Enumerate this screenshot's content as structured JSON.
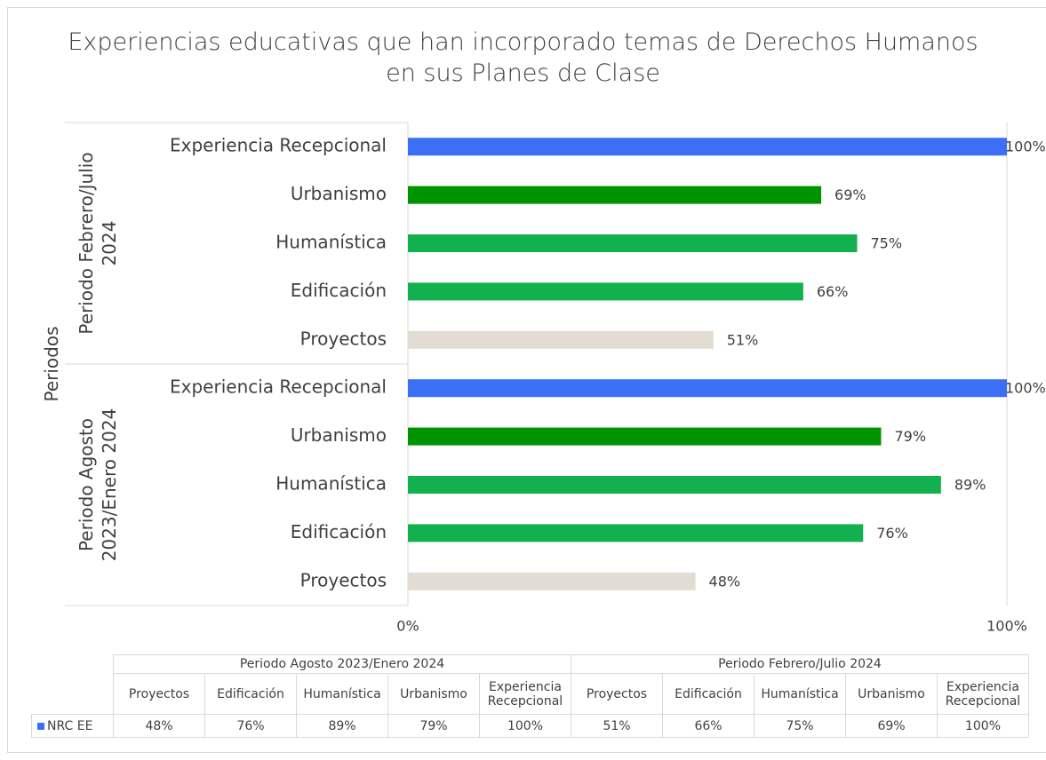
{
  "chart_data": {
    "type": "bar",
    "orientation": "horizontal",
    "title": "Experiencias educativas que han incorporado temas de Derechos Humanos en sus Planes de Clase",
    "y_label": "Periodos",
    "series": [
      {
        "name": "NRC EE",
        "color": "#3b6ff5"
      }
    ],
    "groups": [
      {
        "name": "Periodo Agosto 2023/Enero 2024",
        "categories": [
          "Proyectos",
          "Edificación",
          "Humanística",
          "Urbanismo",
          "Experiencia Recepcional"
        ],
        "values": [
          48,
          76,
          89,
          79,
          100
        ],
        "value_labels": [
          "48%",
          "76%",
          "89%",
          "79%",
          "100%"
        ],
        "colors": [
          "#e2dcd2",
          "#12b04e",
          "#12b04e",
          "#009300",
          "#3b6ff5"
        ]
      },
      {
        "name": "Periodo Febrero/Julio 2024",
        "categories": [
          "Proyectos",
          "Edificación",
          "Humanística",
          "Urbanismo",
          "Experiencia Recepcional"
        ],
        "values": [
          51,
          66,
          75,
          69,
          100
        ],
        "value_labels": [
          "51%",
          "66%",
          "75%",
          "69%",
          "100%"
        ],
        "colors": [
          "#e2dcd2",
          "#12b04e",
          "#12b04e",
          "#009300",
          "#3b6ff5"
        ]
      }
    ],
    "xlim": [
      0,
      100
    ],
    "xticks": [
      {
        "value": 0,
        "label": "0%"
      },
      {
        "value": 100,
        "label": "100%"
      }
    ],
    "grid": true
  }
}
